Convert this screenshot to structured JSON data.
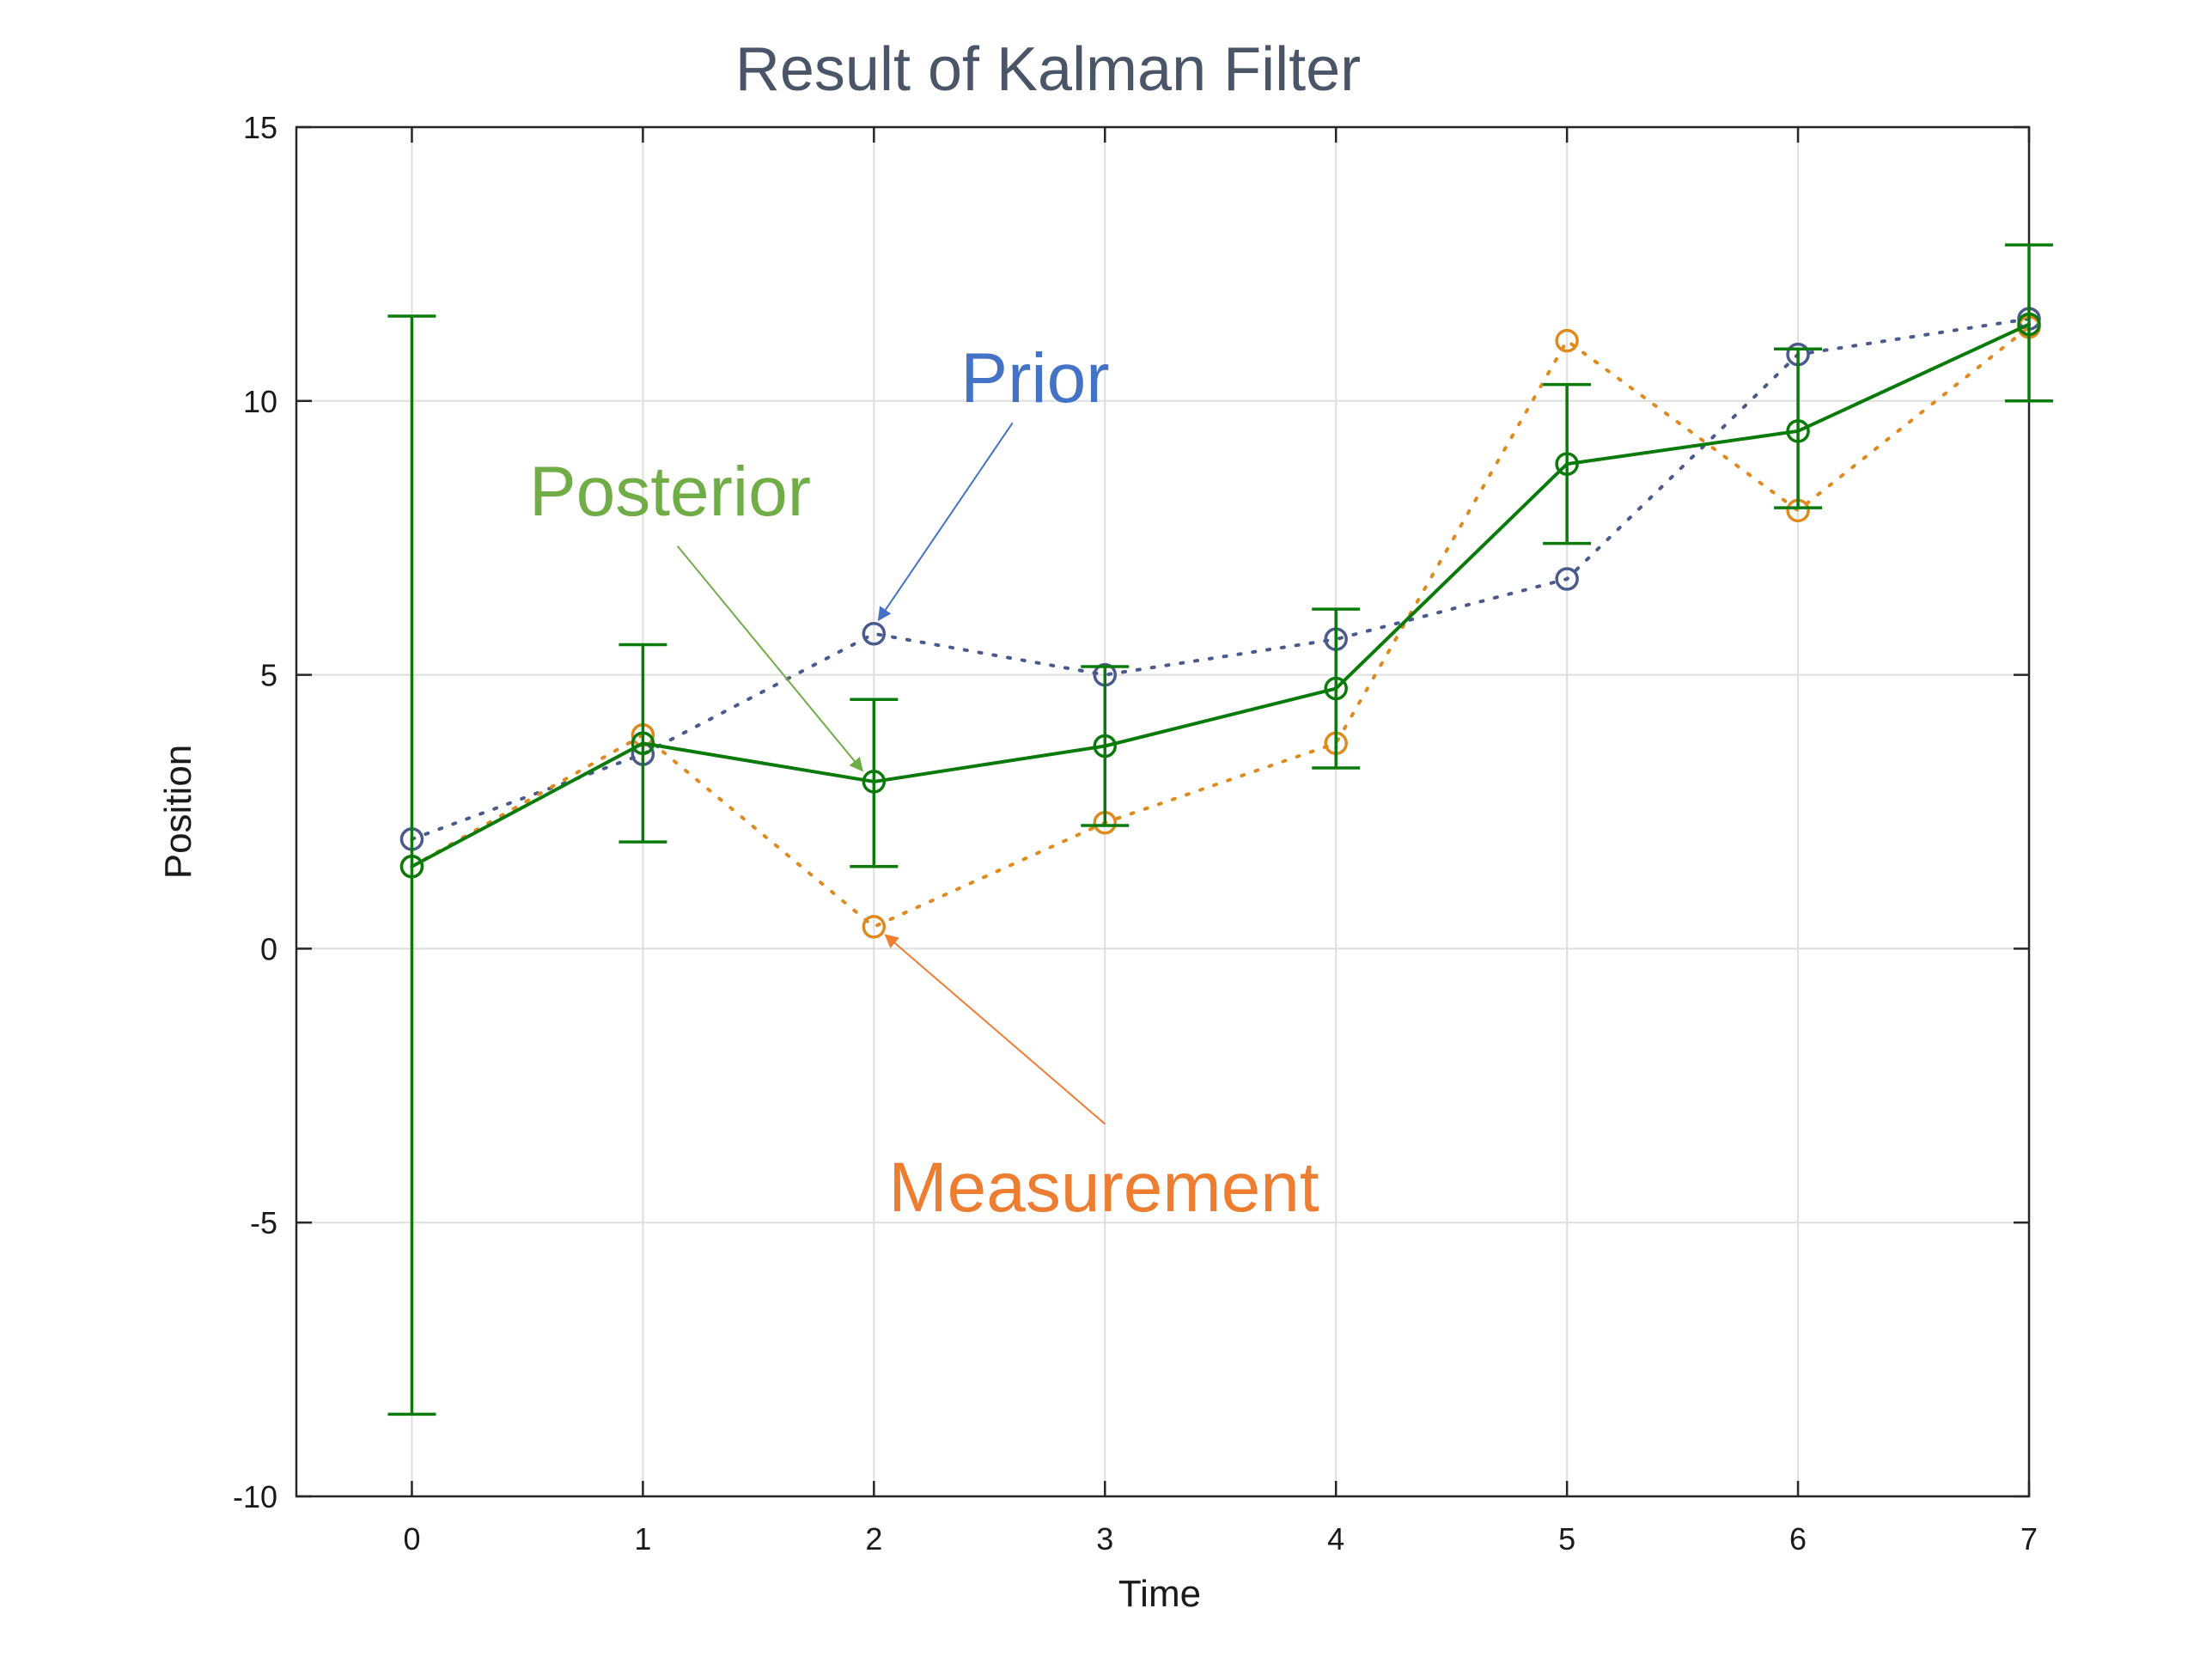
{
  "chart_data": {
    "type": "line",
    "title": "Result of Kalman Filter",
    "xlabel": "Time",
    "ylabel": "Position",
    "xlim": [
      -0.5,
      7
    ],
    "ylim": [
      -10,
      15
    ],
    "x_ticks": [
      0,
      1,
      2,
      3,
      4,
      5,
      6,
      7
    ],
    "y_ticks": [
      -10,
      -5,
      0,
      5,
      10,
      15
    ],
    "x_tick_labels": [
      "0",
      "1",
      "2",
      "3",
      "4",
      "5",
      "6",
      "7"
    ],
    "y_tick_labels": [
      "-10",
      "-5",
      "0",
      "5",
      "10",
      "15"
    ],
    "grid": true,
    "x": [
      0,
      1,
      2,
      3,
      4,
      5,
      6,
      7
    ],
    "series": [
      {
        "key": "prior",
        "values": [
          2.0,
          3.55,
          5.75,
          5.0,
          5.65,
          6.75,
          10.85,
          11.5
        ],
        "color": "#4a5a8c",
        "style": "dotted",
        "marker": "circle"
      },
      {
        "key": "measurement",
        "values": [
          1.5,
          3.9,
          0.4,
          2.3,
          3.75,
          11.1,
          8.0,
          11.35
        ],
        "color": "#e08a1e",
        "style": "dotted",
        "marker": "circle"
      },
      {
        "key": "posterior",
        "values": [
          1.5,
          3.75,
          3.05,
          3.7,
          4.75,
          8.85,
          9.45,
          11.4
        ],
        "error_low": [
          -8.5,
          1.95,
          1.5,
          2.25,
          3.3,
          7.4,
          8.05,
          10.0
        ],
        "error_high": [
          11.55,
          5.55,
          4.55,
          5.15,
          6.2,
          10.3,
          10.95,
          12.85
        ],
        "color": "#0a7a0a",
        "style": "solid",
        "marker": "circle"
      }
    ],
    "annotations": [
      {
        "text": "Prior",
        "color": "#4472c4",
        "from": [
          2.6,
          9.6
        ],
        "to": [
          2.02,
          6.0
        ]
      },
      {
        "text": "Posterior",
        "color": "#70ad47",
        "from": [
          1.15,
          7.35
        ],
        "to": [
          1.95,
          3.25
        ]
      },
      {
        "text": "Measurement",
        "color": "#ed7d31",
        "from": [
          3.0,
          -3.2
        ],
        "to": [
          2.05,
          0.25
        ]
      }
    ]
  }
}
